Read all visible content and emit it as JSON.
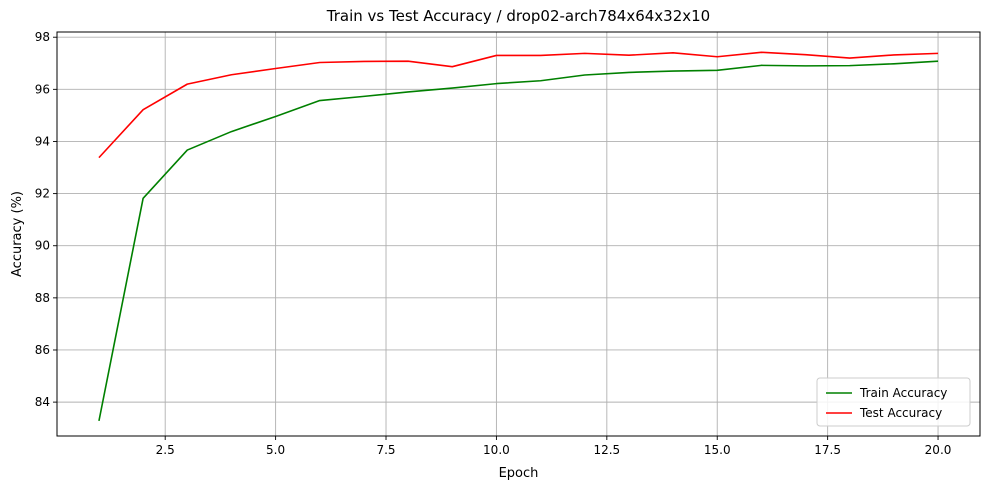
{
  "chart_data": {
    "type": "line",
    "title": "Train vs Test Accuracy / drop02-arch784x64x32x10",
    "xlabel": "Epoch",
    "ylabel": "Accuracy (%)",
    "xlim": [
      0.05,
      20.95
    ],
    "ylim": [
      82.7,
      98.2
    ],
    "xticks": [
      2.5,
      5.0,
      7.5,
      10.0,
      12.5,
      15.0,
      17.5,
      20.0
    ],
    "xtick_labels": [
      "2.5",
      "5.0",
      "7.5",
      "10.0",
      "12.5",
      "15.0",
      "17.5",
      "20.0"
    ],
    "yticks": [
      84,
      86,
      88,
      90,
      92,
      94,
      96,
      98
    ],
    "ytick_labels": [
      "84",
      "86",
      "88",
      "90",
      "92",
      "94",
      "96",
      "98"
    ],
    "grid": true,
    "legend_position": "bottom-right",
    "x": [
      1,
      2,
      3,
      4,
      5,
      6,
      7,
      8,
      9,
      10,
      11,
      12,
      13,
      14,
      15,
      16,
      17,
      18,
      19,
      20
    ],
    "series": [
      {
        "name": "Train Accuracy",
        "color": "#008000",
        "values": [
          83.28,
          91.82,
          93.67,
          94.38,
          94.96,
          95.57,
          95.73,
          95.9,
          96.05,
          96.22,
          96.33,
          96.55,
          96.65,
          96.7,
          96.73,
          96.92,
          96.9,
          96.91,
          96.98,
          97.08
        ]
      },
      {
        "name": "Test Accuracy",
        "color": "#ff0000",
        "values": [
          93.38,
          95.22,
          96.2,
          96.56,
          96.8,
          97.03,
          97.07,
          97.08,
          96.87,
          97.3,
          97.3,
          97.38,
          97.31,
          97.4,
          97.25,
          97.42,
          97.33,
          97.2,
          97.32,
          97.38
        ]
      }
    ]
  }
}
